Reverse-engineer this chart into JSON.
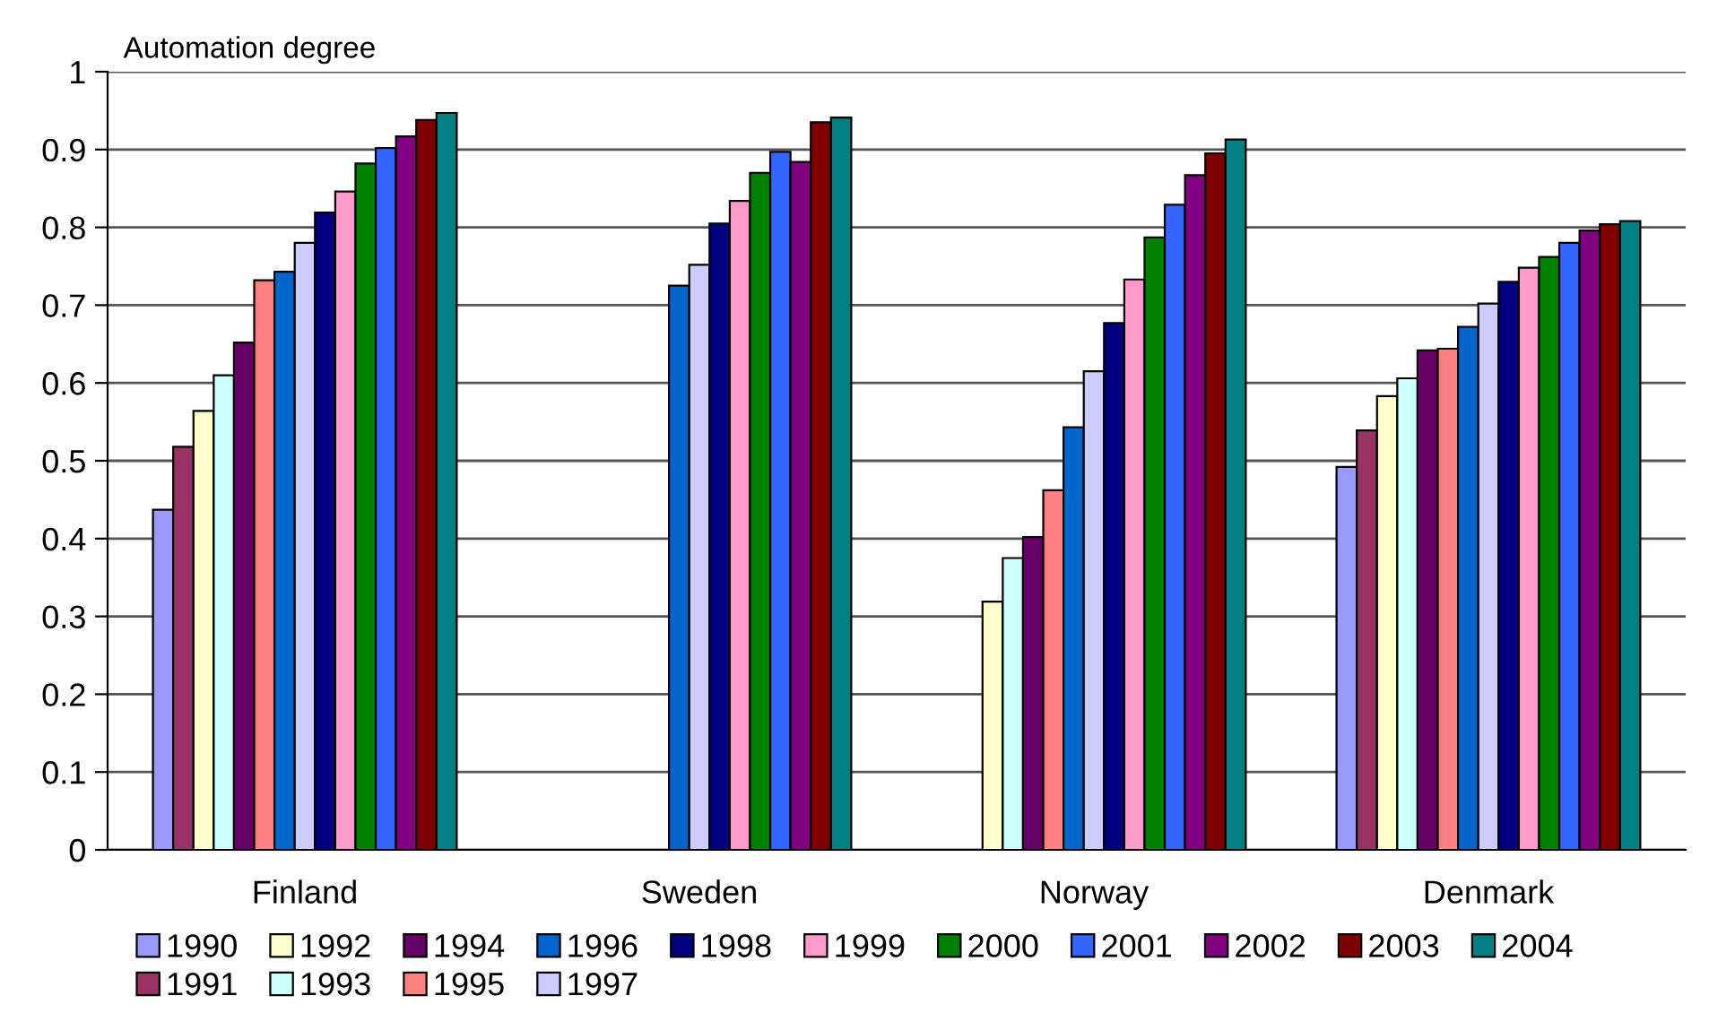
{
  "chart_data": {
    "type": "bar",
    "ylabel": "Automation degree",
    "categories": [
      "Finland",
      "Sweden",
      "Norway",
      "Denmark"
    ],
    "ylim": [
      0,
      1
    ],
    "yticks": [
      0,
      0.1,
      0.2,
      0.3,
      0.4,
      0.5,
      0.6,
      0.7,
      0.8,
      0.9,
      1
    ],
    "grid": "y",
    "legend": "bottom",
    "series": [
      {
        "name": "1990",
        "color": "#9999ff",
        "values": [
          0.437,
          null,
          null,
          0.492
        ]
      },
      {
        "name": "1991",
        "color": "#993366",
        "values": [
          0.518,
          null,
          null,
          0.539
        ]
      },
      {
        "name": "1992",
        "color": "#ffffcc",
        "values": [
          0.564,
          null,
          0.319,
          0.583
        ]
      },
      {
        "name": "1993",
        "color": "#ccffff",
        "values": [
          0.61,
          null,
          0.375,
          0.606
        ]
      },
      {
        "name": "1994",
        "color": "#660066",
        "values": [
          0.652,
          null,
          0.402,
          0.642
        ]
      },
      {
        "name": "1995",
        "color": "#ff8080",
        "values": [
          0.732,
          null,
          0.462,
          0.644
        ]
      },
      {
        "name": "1996",
        "color": "#0066cc",
        "values": [
          0.743,
          0.725,
          0.543,
          0.672
        ]
      },
      {
        "name": "1997",
        "color": "#ccccff",
        "values": [
          0.78,
          0.752,
          0.615,
          0.702
        ]
      },
      {
        "name": "1998",
        "color": "#000080",
        "values": [
          0.819,
          0.805,
          0.677,
          0.73
        ]
      },
      {
        "name": "1999",
        "color": "#ff99cc",
        "values": [
          0.846,
          0.834,
          0.733,
          0.748
        ]
      },
      {
        "name": "2000",
        "color": "#008000",
        "values": [
          0.882,
          0.87,
          0.787,
          0.762
        ]
      },
      {
        "name": "2001",
        "color": "#3366ff",
        "values": [
          0.902,
          0.897,
          0.829,
          0.78
        ]
      },
      {
        "name": "2002",
        "color": "#800080",
        "values": [
          0.917,
          0.884,
          0.867,
          0.796
        ]
      },
      {
        "name": "2003",
        "color": "#800000",
        "values": [
          0.938,
          0.935,
          0.895,
          0.804
        ]
      },
      {
        "name": "2004",
        "color": "#008080",
        "values": [
          0.947,
          0.941,
          0.913,
          0.808
        ]
      }
    ]
  }
}
